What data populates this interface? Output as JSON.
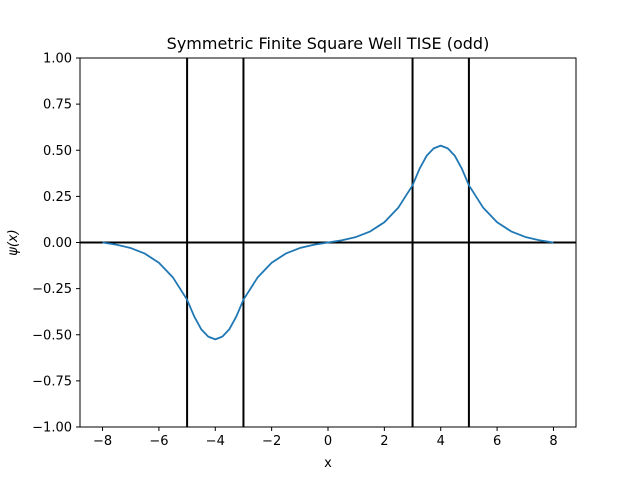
{
  "chart_data": {
    "type": "line",
    "title": "Symmetric Finite Square Well TISE (odd)",
    "xlabel": "x",
    "ylabel": "ψ(x)",
    "xlim": [
      -8.8,
      8.8
    ],
    "ylim": [
      -1.0,
      1.0
    ],
    "x_ticks": [
      -8,
      -6,
      -4,
      -2,
      0,
      2,
      4,
      6,
      8
    ],
    "x_tick_labels": [
      "−8",
      "−6",
      "−4",
      "−2",
      "0",
      "2",
      "4",
      "6",
      "8"
    ],
    "y_ticks": [
      -1.0,
      -0.75,
      -0.5,
      -0.25,
      0.0,
      0.25,
      0.5,
      0.75,
      1.0
    ],
    "y_tick_labels": [
      "−1.00",
      "−0.75",
      "−0.50",
      "−0.25",
      "0.00",
      "0.25",
      "0.50",
      "0.75",
      "1.00"
    ],
    "grid": false,
    "legend": "none",
    "vertical_lines": [
      -5,
      -3,
      3,
      5
    ],
    "horizontal_lines": [
      0
    ],
    "series": [
      {
        "color": "#1f77b4",
        "x": [
          -8,
          -7.5,
          -7,
          -6.5,
          -6,
          -5.5,
          -5,
          -4.75,
          -4.5,
          -4.25,
          -4,
          -3.75,
          -3.5,
          -3.25,
          -3,
          -2.5,
          -2,
          -1.5,
          -1,
          -0.5,
          0,
          0.5,
          1,
          1.5,
          2,
          2.5,
          3,
          3.25,
          3.5,
          3.75,
          4,
          4.25,
          4.5,
          4.75,
          5,
          5.5,
          6,
          6.5,
          7,
          7.5,
          8
        ],
        "y": [
          0.0,
          -0.012,
          -0.03,
          -0.06,
          -0.11,
          -0.19,
          -0.31,
          -0.4,
          -0.47,
          -0.51,
          -0.525,
          -0.51,
          -0.47,
          -0.4,
          -0.31,
          -0.19,
          -0.11,
          -0.06,
          -0.03,
          -0.012,
          0.0,
          0.012,
          0.03,
          0.06,
          0.11,
          0.19,
          0.31,
          0.4,
          0.47,
          0.51,
          0.525,
          0.51,
          0.47,
          0.4,
          0.31,
          0.19,
          0.11,
          0.06,
          0.03,
          0.012,
          0.0
        ]
      }
    ],
    "line_color": "#000000"
  }
}
